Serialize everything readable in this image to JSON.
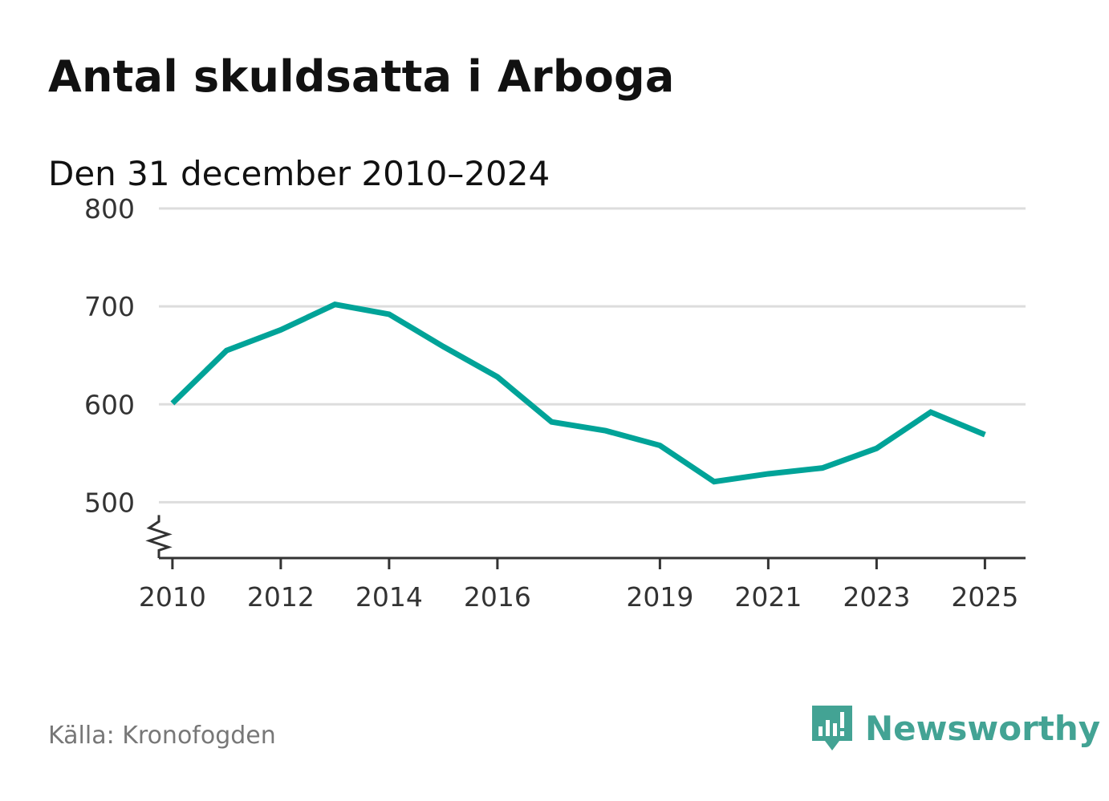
{
  "title": "Antal skuldsatta i Arboga",
  "subtitle": "Den 31 december 2010–2024",
  "source": "Källa: Kronofogden",
  "brand": {
    "name": "Newsworthy",
    "icon": "newsworthy-logo-icon",
    "color": "#43a394"
  },
  "chart_data": {
    "type": "line",
    "title": "Antal skuldsatta i Arboga",
    "subtitle": "Den 31 december 2010–2024",
    "xlabel": "",
    "ylabel": "",
    "x": [
      2010,
      2011,
      2012,
      2013,
      2014,
      2015,
      2016,
      2017,
      2018,
      2019,
      2020,
      2021,
      2022,
      2023,
      2024,
      2025
    ],
    "values": [
      601,
      655,
      676,
      702,
      692,
      659,
      628,
      582,
      573,
      558,
      521,
      529,
      535,
      555,
      592,
      569
    ],
    "ylim": [
      443,
      800
    ],
    "xlim": [
      2009.75,
      2025.75
    ],
    "y_ticks": [
      "500",
      "600",
      "700",
      "800"
    ],
    "x_ticks": [
      "2010",
      "2012",
      "2014",
      "2016",
      "2019",
      "2021",
      "2023",
      "2025"
    ],
    "axis_break": true,
    "grid": true,
    "line_color": "#00a398",
    "grid_color": "#dddddd"
  }
}
